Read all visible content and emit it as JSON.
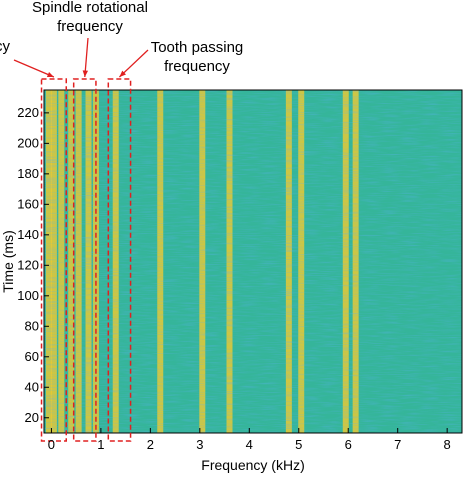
{
  "chart_data": {
    "type": "heatmap",
    "title": "",
    "xlabel": "Frequency (kHz)",
    "ylabel": "Time (ms)",
    "xlim": [
      -0.15,
      8.3
    ],
    "ylim": [
      10,
      235
    ],
    "x_ticks": [
      0,
      1,
      2,
      3,
      4,
      5,
      6,
      7,
      8
    ],
    "x_tick_labels": [
      "0",
      "1",
      "2",
      "3",
      "4",
      "5",
      "6",
      "7",
      "8"
    ],
    "y_ticks": [
      20,
      40,
      60,
      80,
      100,
      120,
      140,
      160,
      180,
      200,
      220
    ],
    "y_tick_labels": [
      "20",
      "40",
      "60",
      "80",
      "100",
      "120",
      "140",
      "160",
      "180",
      "200",
      "220"
    ],
    "grid": false,
    "colormap": "parula",
    "dominant_frequency_lines_khz": [
      -0.05,
      0.05,
      0.2,
      0.4,
      0.55,
      0.75,
      0.9,
      1.3,
      2.2,
      3.05,
      3.6,
      4.8,
      5.05,
      5.95,
      6.15
    ],
    "annotations": [
      {
        "label": "ncy",
        "x_range": [
          -0.2,
          0.3
        ]
      },
      {
        "label": "Spindle rotational\nfrequency",
        "x_range": [
          0.45,
          0.9
        ]
      },
      {
        "label": "Tooth passing\nfrequency",
        "x_range": [
          1.15,
          1.6
        ]
      }
    ]
  },
  "colors": {
    "background_teal": "#35b59a",
    "stripe_yellow": "#e8c935",
    "annotation_red": "#e02020"
  }
}
